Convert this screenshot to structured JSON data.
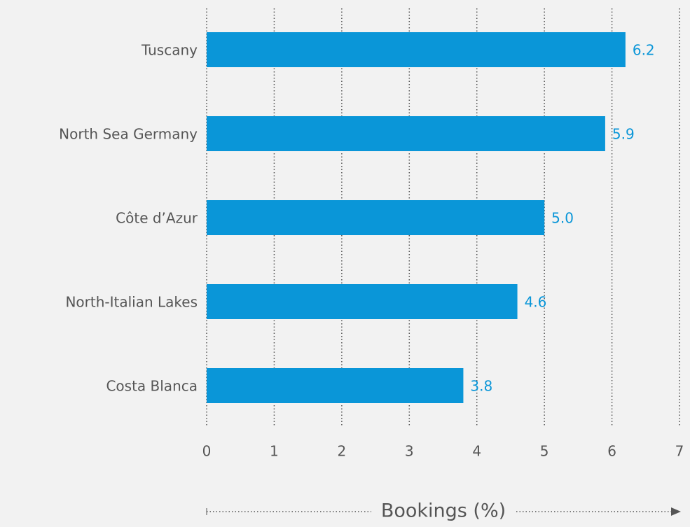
{
  "chart_data": {
    "type": "barh",
    "categories": [
      "Tuscany",
      "North Sea Germany",
      "Côte d’Azur",
      "North-Italian Lakes",
      "Costa Blanca"
    ],
    "values": [
      6.2,
      5.9,
      5.0,
      4.6,
      3.8
    ],
    "value_labels": [
      "6.2",
      "5.9",
      "5.0",
      "4.6",
      "3.8"
    ],
    "color": "#0a96d8",
    "xlabel": "Bookings (%)",
    "xlim": [
      0,
      7
    ],
    "xticks": [
      0,
      1,
      2,
      3,
      4,
      5,
      6,
      7
    ],
    "grid": true
  }
}
